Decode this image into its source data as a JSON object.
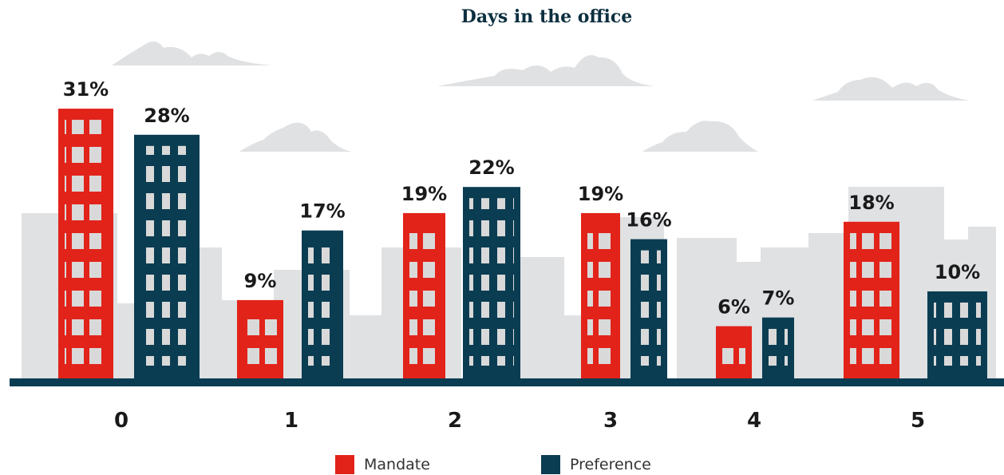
{
  "chart_data": {
    "type": "bar",
    "title": "Days in the office",
    "categories": [
      "0",
      "1",
      "2",
      "3",
      "4",
      "5"
    ],
    "series": [
      {
        "name": "Mandate",
        "color": "#e2231a",
        "values": [
          31,
          9,
          19,
          19,
          6,
          18
        ],
        "value_labels": [
          "31%",
          "9%",
          "19%",
          "19%",
          "6%",
          "18%"
        ]
      },
      {
        "name": "Preference",
        "color": "#0b3d52",
        "values": [
          28,
          17,
          22,
          16,
          7,
          10
        ],
        "value_labels": [
          "28%",
          "17%",
          "22%",
          "16%",
          "7%",
          "10%"
        ]
      }
    ]
  }
}
